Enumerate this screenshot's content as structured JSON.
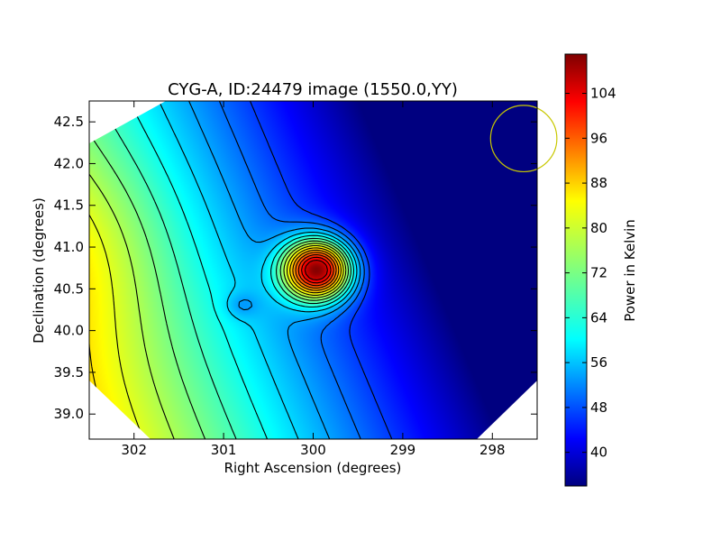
{
  "chart_data": {
    "type": "heatmap",
    "title": "CYG-A, ID:24479 image (1550.0,YY)",
    "xlabel": "Right Ascension (degrees)",
    "ylabel": "Declination (degrees)",
    "x_range": [
      302.5,
      297.5
    ],
    "y_range": [
      38.7,
      42.75
    ],
    "x_ticks": [
      302,
      301,
      300,
      299,
      298
    ],
    "y_ticks": [
      39.0,
      39.5,
      40.0,
      40.5,
      41.0,
      41.5,
      42.0,
      42.5
    ],
    "x_tick_labels": [
      "302",
      "301",
      "300",
      "299",
      "298"
    ],
    "y_tick_labels": [
      "39.0",
      "39.5",
      "40.0",
      "40.5",
      "41.0",
      "41.5",
      "42.0",
      "42.5"
    ],
    "colorbar": {
      "label": "Power in Kelvin",
      "range": [
        34,
        111
      ],
      "ticks": [
        40,
        48,
        56,
        64,
        72,
        80,
        88,
        96,
        104
      ],
      "tick_labels": [
        "40",
        "48",
        "56",
        "64",
        "72",
        "80",
        "88",
        "96",
        "104"
      ],
      "colormap": "jet"
    },
    "peak": {
      "ra": 299.95,
      "dec": 40.73,
      "value": 110
    },
    "secondary_peak": {
      "ra": 302.7,
      "dec": 41.0,
      "value": 78
    },
    "local_minimum": {
      "ra": 300.8,
      "dec": 40.3,
      "value": 53
    },
    "contour_levels": [
      48,
      52,
      56,
      60,
      64,
      68,
      72,
      76,
      80,
      84,
      88,
      92,
      96,
      100,
      104
    ],
    "beam": {
      "ra": 297.65,
      "dec": 42.3,
      "radius_deg": 0.37,
      "color": "#c8c800"
    },
    "grid": false
  }
}
